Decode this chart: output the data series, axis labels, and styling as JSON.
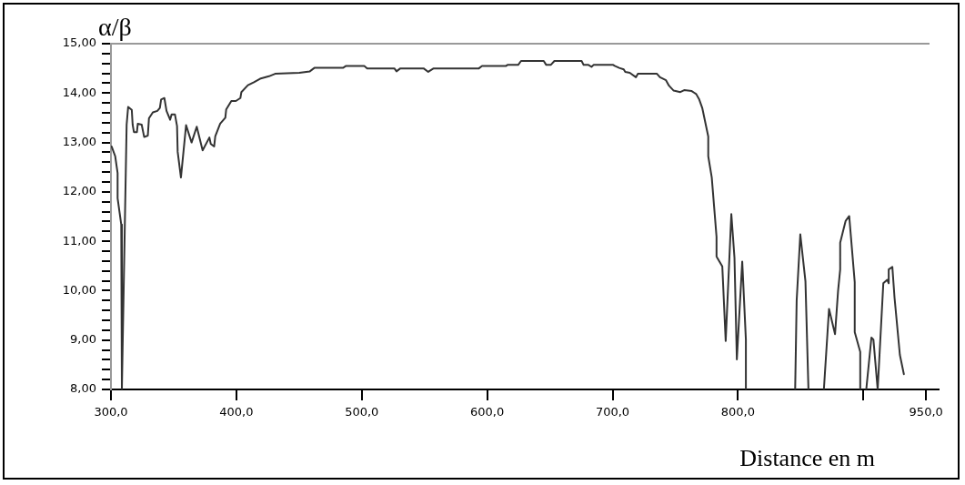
{
  "chart_data": {
    "type": "line",
    "xlabel": "Distance en m",
    "ylabel": "α/β",
    "color": "#333333",
    "marker": "none",
    "line_style": "solid",
    "legend": false,
    "grid": false,
    "x": [
      300.5,
      303.4,
      305.3,
      305.3,
      308.2,
      308.7,
      312.5,
      313.7,
      316.6,
      317.3,
      318.3,
      320.7,
      321.4,
      324.5,
      326.5,
      329.4,
      330.3,
      333.4,
      337,
      339,
      340,
      342.6,
      344.3,
      347.2,
      348.4,
      351,
      352.7,
      353.2,
      355.8,
      359.9,
      364.3,
      368.4,
      373.1,
      378.5,
      379.6,
      382.3,
      383.2,
      387.1,
      391.2,
      391.9,
      396,
      399.6,
      403.2,
      404,
      409.2,
      414,
      418.9,
      426,
      430.9,
      450.2,
      458.6,
      462.2,
      485,
      487.5,
      502,
      504.3,
      526,
      527.7,
      530.8,
      549.3,
      553,
      557.3,
      593.4,
      595.9,
      615.1,
      616.2,
      624.7,
      627,
      645.1,
      647.1,
      650.7,
      653.6,
      675.3,
      676.9,
      680.8,
      683.2,
      684.8,
      700.5,
      701.7,
      705.3,
      708.9,
      710.1,
      713.7,
      718.6,
      720.2,
      735.4,
      737.8,
      742.6,
      745,
      748.7,
      754,
      757.1,
      763.1,
      766.7,
      769.1,
      771.5,
      776.3,
      776.3,
      779.1,
      782.9,
      782.9,
      787.5,
      790.2,
      794.7,
      797.2,
      799.1,
      803.4,
      806.3,
      806.3,
      826,
      845.6,
      846.8,
      849.7,
      853.8,
      856.2,
      862,
      868.5,
      872.6,
      877.4,
      879.8,
      881.5,
      881.5,
      885.8,
      888.7,
      893.1,
      893.1,
      897.5,
      897.5,
      900,
      902.3,
      906.4,
      908,
      911.4,
      915.9,
      919,
      920.2,
      920.2,
      923.1,
      924.8,
      929.1,
      932.3
    ],
    "values": [
      12.92,
      12.72,
      12.38,
      11.87,
      11.34,
      8,
      13.36,
      13.72,
      13.66,
      13.36,
      13.21,
      13.21,
      13.38,
      13.36,
      13.11,
      13.14,
      13.49,
      13.61,
      13.64,
      13.7,
      13.87,
      13.9,
      13.64,
      13.46,
      13.57,
      13.57,
      13.33,
      12.81,
      12.29,
      13.35,
      13,
      13.32,
      12.84,
      13.1,
      12.97,
      12.92,
      13.13,
      13.38,
      13.5,
      13.67,
      13.84,
      13.84,
      13.9,
      14.02,
      14.16,
      14.22,
      14.29,
      14.34,
      14.39,
      14.41,
      14.44,
      14.51,
      14.51,
      14.55,
      14.55,
      14.5,
      14.5,
      14.44,
      14.5,
      14.5,
      14.43,
      14.5,
      14.5,
      14.55,
      14.55,
      14.57,
      14.57,
      14.65,
      14.65,
      14.57,
      14.57,
      14.65,
      14.65,
      14.57,
      14.57,
      14.53,
      14.57,
      14.57,
      14.55,
      14.51,
      14.48,
      14.43,
      14.41,
      14.32,
      14.39,
      14.39,
      14.32,
      14.26,
      14.15,
      14.05,
      14.02,
      14.06,
      14.04,
      13.98,
      13.87,
      13.7,
      13.12,
      12.72,
      12.29,
      11.09,
      10.69,
      10.49,
      8.98,
      11.55,
      10.67,
      8.61,
      10.59,
      9.01,
      8,
      null,
      8,
      9.8,
      11.14,
      10.19,
      8,
      null,
      8,
      9.63,
      9.12,
      9.99,
      10.43,
      10.97,
      11.41,
      11.51,
      10.17,
      9.16,
      8.76,
      8,
      null,
      8,
      9.05,
      9.01,
      8,
      10.15,
      10.22,
      10.15,
      10.43,
      10.48,
      9.87,
      8.7,
      8.31
    ],
    "xlim": [
      300,
      960
    ],
    "xticks": [
      {
        "value": 300,
        "label": "300,0"
      },
      {
        "value": 400,
        "label": "400,0"
      },
      {
        "value": 500,
        "label": "500,0"
      },
      {
        "value": 600,
        "label": "600,0"
      },
      {
        "value": 700,
        "label": "700,0"
      },
      {
        "value": 800,
        "label": "800,0"
      },
      {
        "value": 900,
        "label": null
      },
      {
        "value": 950,
        "label": "950,0"
      }
    ],
    "ylim": [
      8,
      15
    ],
    "yticks": [
      {
        "value": 8,
        "label": "8,00"
      },
      {
        "value": 8.2,
        "label": null
      },
      {
        "value": 8.4,
        "label": null
      },
      {
        "value": 8.6,
        "label": null
      },
      {
        "value": 8.8,
        "label": null
      },
      {
        "value": 9,
        "label": "9,00"
      },
      {
        "value": 9.2,
        "label": null
      },
      {
        "value": 9.4,
        "label": null
      },
      {
        "value": 9.6,
        "label": null
      },
      {
        "value": 9.8,
        "label": null
      },
      {
        "value": 10,
        "label": "10,00"
      },
      {
        "value": 10.2,
        "label": null
      },
      {
        "value": 10.4,
        "label": null
      },
      {
        "value": 10.6,
        "label": null
      },
      {
        "value": 10.8,
        "label": null
      },
      {
        "value": 11,
        "label": "11,00"
      },
      {
        "value": 11.2,
        "label": null
      },
      {
        "value": 11.4,
        "label": null
      },
      {
        "value": 11.6,
        "label": null
      },
      {
        "value": 11.8,
        "label": null
      },
      {
        "value": 12,
        "label": "12,00"
      },
      {
        "value": 12.2,
        "label": null
      },
      {
        "value": 12.4,
        "label": null
      },
      {
        "value": 12.6,
        "label": null
      },
      {
        "value": 12.8,
        "label": null
      },
      {
        "value": 13,
        "label": "13,00"
      },
      {
        "value": 13.2,
        "label": null
      },
      {
        "value": 13.4,
        "label": null
      },
      {
        "value": 13.6,
        "label": null
      },
      {
        "value": 13.8,
        "label": null
      },
      {
        "value": 14,
        "label": "14,00"
      },
      {
        "value": 14.2,
        "label": null
      },
      {
        "value": 14.4,
        "label": null
      },
      {
        "value": 14.6,
        "label": null
      },
      {
        "value": 14.8,
        "label": null
      },
      {
        "value": 15,
        "label": "15,00"
      }
    ]
  }
}
